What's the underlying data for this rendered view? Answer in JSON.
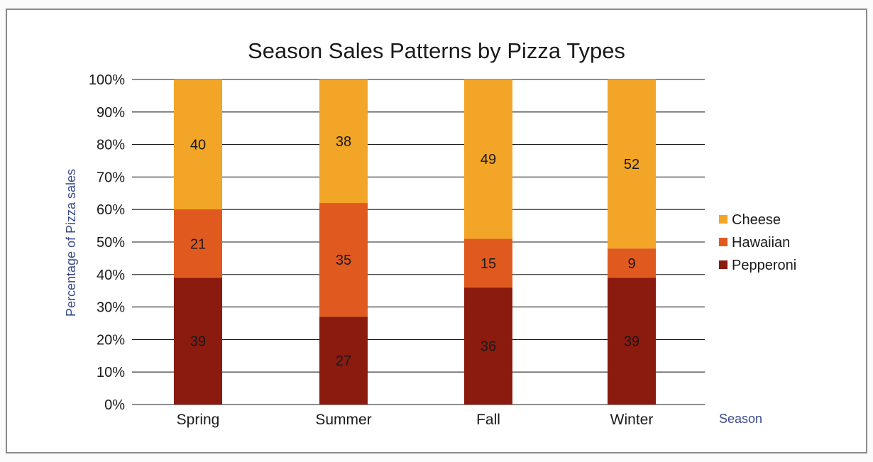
{
  "chart_data": {
    "type": "bar",
    "stacked": true,
    "title": "Season Sales Patterns by Pizza Types",
    "xlabel": "Season",
    "ylabel": "Percentage of Pizza sales",
    "categories": [
      "Spring",
      "Summer",
      "Fall",
      "Winter"
    ],
    "series": [
      {
        "name": "Pepperoni",
        "values": [
          39,
          27,
          36,
          39
        ],
        "color": "#8b1a0f"
      },
      {
        "name": "Hawaiian",
        "values": [
          21,
          35,
          15,
          9
        ],
        "color": "#e05a1f"
      },
      {
        "name": "Cheese",
        "values": [
          40,
          38,
          49,
          52
        ],
        "color": "#f2a527"
      }
    ],
    "ylim": [
      0,
      100
    ],
    "yticks": [
      "0%",
      "10%",
      "20%",
      "30%",
      "40%",
      "50%",
      "60%",
      "70%",
      "80%",
      "90%",
      "100%"
    ],
    "grid": true,
    "legend_position": "right"
  }
}
